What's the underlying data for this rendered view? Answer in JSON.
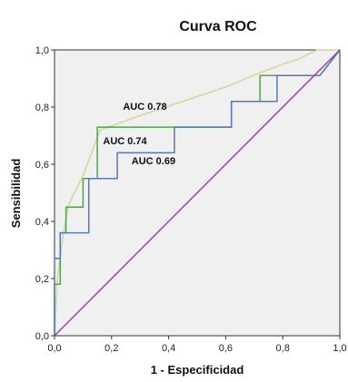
{
  "chart_data": {
    "type": "line",
    "title": "Curva ROC",
    "xlabel": "1 - Especificidad",
    "ylabel": "Sensibilidad",
    "xlim": [
      0,
      1
    ],
    "ylim": [
      0,
      1
    ],
    "x_ticks": [
      "0,0",
      "0,2",
      "0,4",
      "0,6",
      "0,8",
      "1,0"
    ],
    "y_ticks": [
      "0,0",
      "0,2",
      "0,4",
      "0,6",
      "0,8",
      "1,0"
    ],
    "grid": false,
    "background_color": "#f0f0f0",
    "series": [
      {
        "color": "#d8d4a0",
        "x": [
          0,
          0.01,
          0.03,
          0.05,
          0.1,
          0.16,
          0.3,
          0.45,
          0.6,
          0.72,
          0.8,
          0.86,
          0.92,
          1
        ],
        "y": [
          0,
          0.2,
          0.35,
          0.46,
          0.56,
          0.72,
          0.77,
          0.82,
          0.87,
          0.92,
          0.95,
          0.97,
          1,
          1
        ]
      },
      {
        "color": "#4aa84a",
        "x": [
          0,
          0,
          0.02,
          0.02,
          0.04,
          0.04,
          0.1,
          0.1,
          0.15,
          0.15,
          0.62,
          0.62,
          0.72,
          0.72,
          0.93,
          1
        ],
        "y": [
          0,
          0.18,
          0.18,
          0.36,
          0.36,
          0.45,
          0.45,
          0.55,
          0.55,
          0.73,
          0.73,
          0.82,
          0.82,
          0.91,
          0.91,
          1
        ]
      },
      {
        "color": "#5577bb",
        "x": [
          0,
          0,
          0.02,
          0.02,
          0.12,
          0.12,
          0.22,
          0.22,
          0.42,
          0.42,
          0.62,
          0.62,
          0.78,
          0.78,
          0.93,
          1
        ],
        "y": [
          0,
          0.27,
          0.27,
          0.36,
          0.36,
          0.55,
          0.55,
          0.64,
          0.64,
          0.73,
          0.73,
          0.82,
          0.82,
          0.91,
          0.91,
          1
        ]
      },
      {
        "color": "#9944aa",
        "x": [
          0,
          1
        ],
        "y": [
          0,
          1
        ]
      }
    ],
    "annotations": [
      {
        "text": "AUC 0.78",
        "x": 0.24,
        "y": 0.79
      },
      {
        "text": "AUC 0.74",
        "x": 0.17,
        "y": 0.67
      },
      {
        "text": "AUC 0.69",
        "x": 0.27,
        "y": 0.6
      }
    ]
  }
}
